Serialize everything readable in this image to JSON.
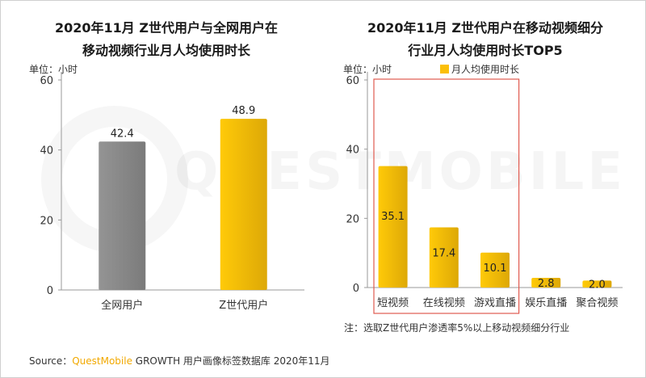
{
  "chart_data": [
    {
      "type": "bar",
      "title_lines": [
        "2020年11月 Z世代用户与全网用户在",
        "移动视频行业月人均使用时长"
      ],
      "unit_label": "单位：小时",
      "categories": [
        "全网用户",
        "Z世代用户"
      ],
      "values": [
        42.4,
        48.9
      ],
      "value_labels": [
        "42.4",
        "48.9"
      ],
      "bar_colors": [
        "#8c8c8c",
        "#fbbf08"
      ],
      "ylim": [
        0,
        60
      ],
      "yticks": [
        0,
        20,
        40,
        60
      ],
      "ytick_labels": [
        "0",
        "20",
        "40",
        "60"
      ]
    },
    {
      "type": "bar",
      "title_lines": [
        "2020年11月 Z世代用户在移动视频细分",
        "行业月人均使用时长TOP5"
      ],
      "unit_label": "单位：小时",
      "legend": "月人均使用时长",
      "categories": [
        "短视频",
        "在线视频",
        "游戏直播",
        "娱乐直播",
        "聚合视频"
      ],
      "values": [
        35.1,
        17.4,
        10.1,
        2.8,
        2.0
      ],
      "value_labels": [
        "35.1",
        "17.4",
        "10.1",
        "2.8",
        "2.0"
      ],
      "bar_color": "#fbbf08",
      "ylim": [
        0,
        60
      ],
      "yticks": [
        0,
        20,
        40,
        60
      ],
      "ytick_labels": [
        "0",
        "20",
        "40",
        "60"
      ],
      "highlight_color": "#e05a4f"
    }
  ],
  "note": "注：选取Z世代用户渗透率5%以上移动视频细分行业",
  "source": {
    "prefix": "Source：",
    "brand": "QuestMobile",
    "rest": " GROWTH 用户画像标签数据库 2020年11月"
  },
  "watermark": "QUESTMOBILE"
}
